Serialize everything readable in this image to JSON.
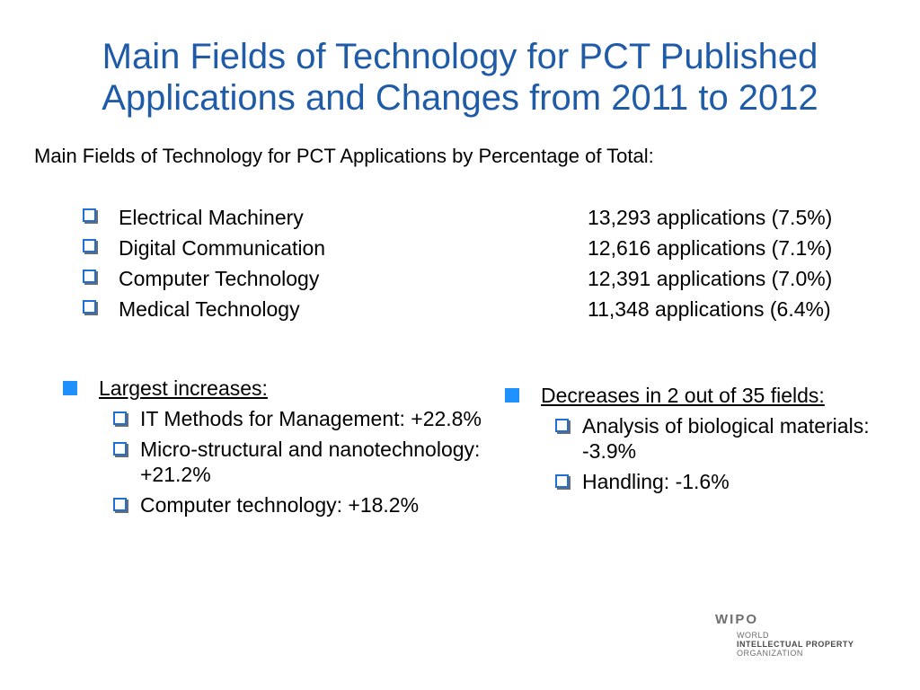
{
  "title": {
    "line1": "Main Fields of Technology for PCT Published",
    "line2": "Applications and Changes from 2011 to 2012"
  },
  "subtitle": "Main Fields of Technology for PCT Applications by Percentage of Total:",
  "fields": [
    {
      "name": "Electrical Machinery",
      "count": "13,293 applications (7.5%)"
    },
    {
      "name": "Digital Communication",
      "count": "12,616 applications (7.1%)"
    },
    {
      "name": "Computer Technology",
      "count": "12,391 applications (7.0%)"
    },
    {
      "name": "Medical Technology",
      "count": "11,348 applications (6.4%)"
    }
  ],
  "increases": {
    "heading": "Largest increases:",
    "items": [
      "IT Methods for Management: +22.8%",
      "Micro-structural and nanotechnology:  +21.2%",
      "Computer technology:  +18.2%"
    ]
  },
  "decreases": {
    "heading": "Decreases in 2 out of 35 fields:",
    "items": [
      "Analysis of biological materials:  -3.9%",
      "Handling:  -1.6%"
    ]
  },
  "logo": {
    "acronym": "WIPO",
    "line1": "WORLD",
    "line2": "INTELLECTUAL PROPERTY",
    "line3": "ORGANIZATION"
  },
  "colors": {
    "title": "#1f5ba7",
    "bullet": "#1e90ff"
  }
}
